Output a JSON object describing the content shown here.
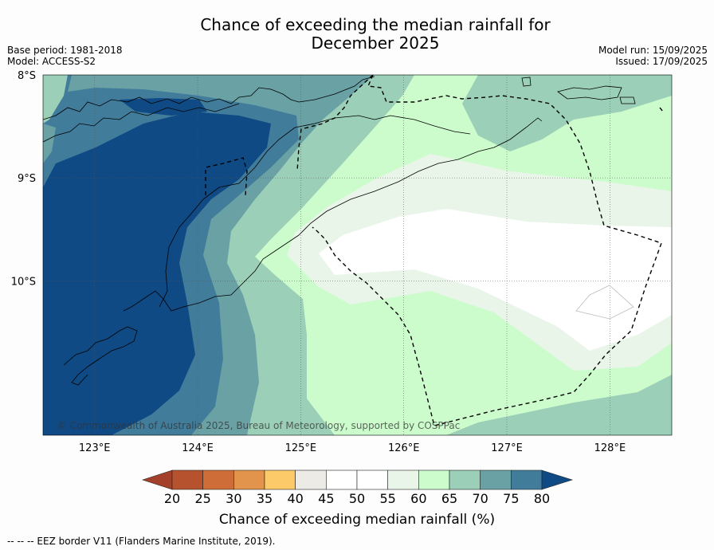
{
  "title": {
    "line1": "Chance of exceeding the median rainfall for",
    "line2": "December 2025"
  },
  "meta": {
    "base_period": "Base period: 1981-2018",
    "model": "Model: ACCESS-S2",
    "model_run": "Model run: 15/09/2025",
    "issued": "Issued: 17/09/2025"
  },
  "copyright": "© Commonwealth of Australia 2025, Bureau of Meteorology, supported by COSPPac",
  "footnote": "--  --  -- EEZ border V11 (Flanders Marine Institute, 2019).",
  "colorbar": {
    "label": "Chance of exceeding median rainfall (%)",
    "ticks": [
      "20",
      "25",
      "30",
      "35",
      "40",
      "45",
      "50",
      "55",
      "60",
      "65",
      "70",
      "75",
      "80"
    ],
    "colors": [
      "#a3412a",
      "#b6522d",
      "#cf6d39",
      "#e2944c",
      "#fdca6a",
      "#ecebe6",
      "#ffffff",
      "#ffffff",
      "#eaf5ea",
      "#ccfccc",
      "#9ccfb8",
      "#6aa1a4",
      "#427c9b",
      "#104a84"
    ]
  },
  "chart_data": {
    "type": "heatmap",
    "title": "Chance of exceeding the median rainfall for December 2025",
    "xlim": [
      122.5,
      128.6
    ],
    "ylim": [
      -11.5,
      -8.0
    ],
    "x_ticks": [
      "123°E",
      "124°E",
      "125°E",
      "126°E",
      "127°E",
      "128°E"
    ],
    "x_tick_values": [
      123,
      124,
      125,
      126,
      127,
      128
    ],
    "y_ticks": [
      "8°S",
      "9°S",
      "10°S"
    ],
    "y_tick_values": [
      -8,
      -9,
      -10
    ],
    "grid": true,
    "colorbar_unit": "%",
    "legend": "bottom",
    "regions": [
      {
        "range": "75-80",
        "color": "#104a84",
        "area": "west over Savu Sea"
      },
      {
        "range": "70-75",
        "color": "#427c9b",
        "area": "west"
      },
      {
        "range": "65-70",
        "color": "#6aa1a4",
        "area": "west-central"
      },
      {
        "range": "60-65",
        "color": "#9ccfb8",
        "area": "central and southeast"
      },
      {
        "range": "55-60",
        "color": "#ccfccc",
        "area": "east"
      },
      {
        "range": "50-55",
        "color": "#eaf5ea",
        "area": "southeast band"
      },
      {
        "range": "45-55",
        "color": "#ffffff",
        "area": "Timor Sea south of Timor"
      }
    ]
  }
}
